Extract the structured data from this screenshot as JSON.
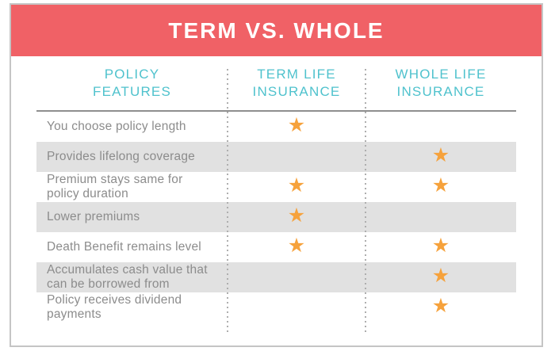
{
  "title": "TERM VS. WHOLE",
  "columns": [
    {
      "line1": "POLICY",
      "line2": "FEATURES"
    },
    {
      "line1": "TERM LIFE",
      "line2": "INSURANCE"
    },
    {
      "line1": "WHOLE LIFE",
      "line2": "INSURANCE"
    }
  ],
  "rows": [
    {
      "feature": "You choose policy length",
      "term_star": "★",
      "whole_star": ""
    },
    {
      "feature": "Provides lifelong coverage",
      "term_star": "",
      "whole_star": "★"
    },
    {
      "feature": "Premium stays same for\npolicy duration",
      "term_star": "★",
      "whole_star": "★"
    },
    {
      "feature": "Lower premiums",
      "term_star": "★",
      "whole_star": ""
    },
    {
      "feature": "Death Benefit remains level",
      "term_star": "★",
      "whole_star": "★"
    },
    {
      "feature": "Accumulates cash value that\ncan be borrowed from",
      "term_star": "",
      "whole_star": "★"
    },
    {
      "feature": "Policy receives dividend\npayments",
      "term_star": "",
      "whole_star": "★"
    }
  ],
  "colors": {
    "banner": "#f06166",
    "column_header_text": "#4fc2cd",
    "star": "#f6a23c",
    "shaded_row": "#e1e1e1",
    "feature_text": "#8c8c8c",
    "card_border": "#c5c5c5"
  },
  "chart_data": {
    "type": "table",
    "title": "TERM VS. WHOLE",
    "columns": [
      "POLICY FEATURES",
      "TERM LIFE INSURANCE",
      "WHOLE LIFE INSURANCE"
    ],
    "legend": "star = feature applies to that policy type",
    "rows": [
      {
        "feature": "You choose policy length",
        "term_life": true,
        "whole_life": false
      },
      {
        "feature": "Provides lifelong coverage",
        "term_life": false,
        "whole_life": true
      },
      {
        "feature": "Premium stays same for policy duration",
        "term_life": true,
        "whole_life": true
      },
      {
        "feature": "Lower premiums",
        "term_life": true,
        "whole_life": false
      },
      {
        "feature": "Death Benefit remains level",
        "term_life": true,
        "whole_life": true
      },
      {
        "feature": "Accumulates cash value that can be borrowed from",
        "term_life": false,
        "whole_life": true
      },
      {
        "feature": "Policy receives dividend payments",
        "term_life": false,
        "whole_life": true
      }
    ]
  }
}
